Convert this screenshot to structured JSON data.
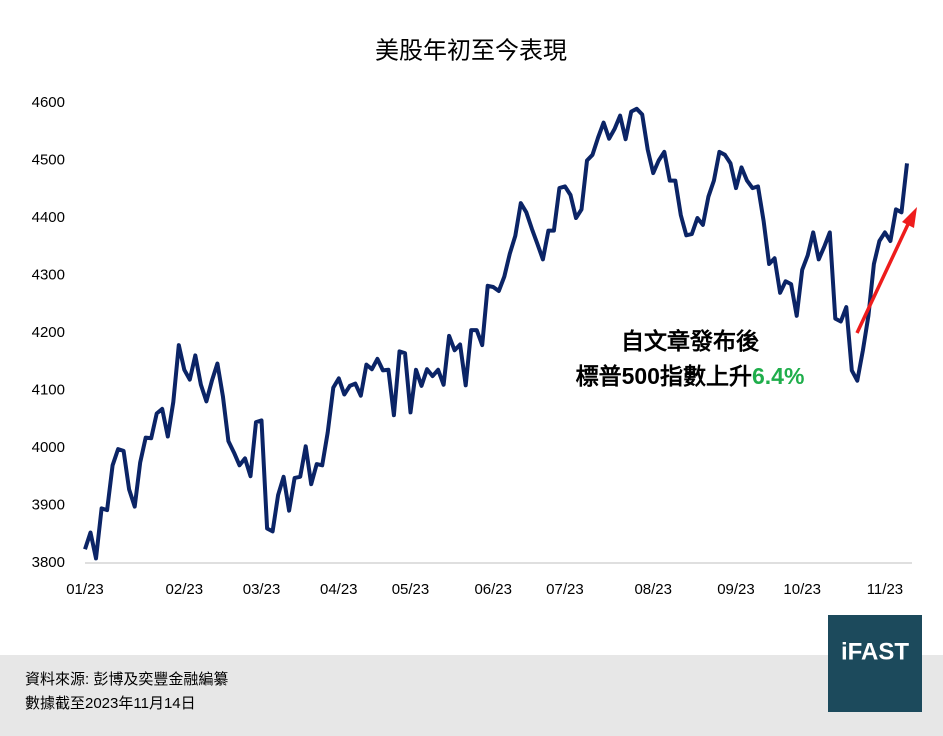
{
  "chart_data": {
    "type": "line",
    "title": "美股年初至今表現",
    "categories": [
      "01/23",
      null,
      null,
      null,
      null,
      null,
      null,
      null,
      null,
      null,
      null,
      null,
      null,
      null,
      null,
      null,
      null,
      null,
      "02/23",
      null,
      null,
      null,
      null,
      null,
      null,
      null,
      null,
      null,
      null,
      null,
      null,
      null,
      "03/23",
      null,
      null,
      null,
      null,
      null,
      null,
      null,
      null,
      null,
      null,
      null,
      null,
      null,
      "04/23",
      null,
      null,
      null,
      null,
      null,
      null,
      null,
      null,
      null,
      null,
      null,
      null,
      "05/23",
      null,
      null,
      null,
      null,
      null,
      null,
      null,
      null,
      null,
      null,
      null,
      null,
      null,
      null,
      "06/23",
      null,
      null,
      null,
      null,
      null,
      null,
      null,
      null,
      null,
      null,
      null,
      null,
      "07/23",
      null,
      null,
      null,
      null,
      null,
      null,
      null,
      null,
      null,
      null,
      null,
      null,
      null,
      null,
      null,
      "08/23",
      null,
      null,
      null,
      null,
      null,
      null,
      null,
      null,
      null,
      null,
      null,
      null,
      null,
      null,
      "09/23",
      null,
      null,
      null,
      null,
      null,
      null,
      null,
      null,
      null,
      null,
      null,
      "10/23",
      null,
      null,
      null,
      null,
      null,
      null,
      null,
      null,
      null,
      null,
      null,
      null,
      null,
      null,
      "11/23",
      null,
      null,
      null,
      null
    ],
    "series": [
      {
        "name": "標普500指數",
        "color": "#0b2466",
        "values": [
          3824,
          3853,
          3808,
          3895,
          3892,
          3970,
          3998,
          3995,
          3928,
          3898,
          3975,
          4018,
          4017,
          4060,
          4068,
          4020,
          4080,
          4179,
          4136,
          4119,
          4161,
          4110,
          4081,
          4117,
          4147,
          4090,
          4012,
          3992,
          3970,
          3982,
          3951,
          4045,
          4048,
          3860,
          3855,
          3918,
          3950,
          3891,
          3948,
          3950,
          4003,
          3937,
          3972,
          3970,
          4027,
          4105,
          4121,
          4093,
          4108,
          4112,
          4091,
          4145,
          4137,
          4155,
          4135,
          4136,
          4057,
          4168,
          4165,
          4062,
          4136,
          4108,
          4137,
          4125,
          4136,
          4110,
          4195,
          4170,
          4180,
          4109,
          4205,
          4205,
          4179,
          4282,
          4280,
          4273,
          4298,
          4338,
          4369,
          4426,
          4410,
          4381,
          4355,
          4328,
          4378,
          4378,
          4452,
          4455,
          4440,
          4400,
          4415,
          4500,
          4510,
          4540,
          4566,
          4538,
          4555,
          4578,
          4537,
          4585,
          4590,
          4580,
          4519,
          4478,
          4500,
          4515,
          4465,
          4465,
          4405,
          4370,
          4372,
          4400,
          4388,
          4437,
          4465,
          4515,
          4510,
          4495,
          4452,
          4488,
          4465,
          4452,
          4455,
          4395,
          4320,
          4330,
          4270,
          4290,
          4285,
          4230,
          4310,
          4335,
          4375,
          4328,
          4350,
          4375,
          4225,
          4220,
          4245,
          4135,
          4117,
          4170,
          4230,
          4320,
          4360,
          4375,
          4360,
          4415,
          4410,
          4495
        ]
      }
    ],
    "ylim": [
      3800,
      4600
    ],
    "yticks": [
      3800,
      3900,
      4000,
      4100,
      4200,
      4300,
      4400,
      4500,
      4600
    ],
    "grid": false,
    "annotations": [
      "自文章發布後",
      "標普500指數上升",
      "6.4%"
    ],
    "source": "資料來源: 彭博及奕豐金融編纂",
    "note": "數據截至2023年11月14日",
    "logo": "iFAST"
  }
}
